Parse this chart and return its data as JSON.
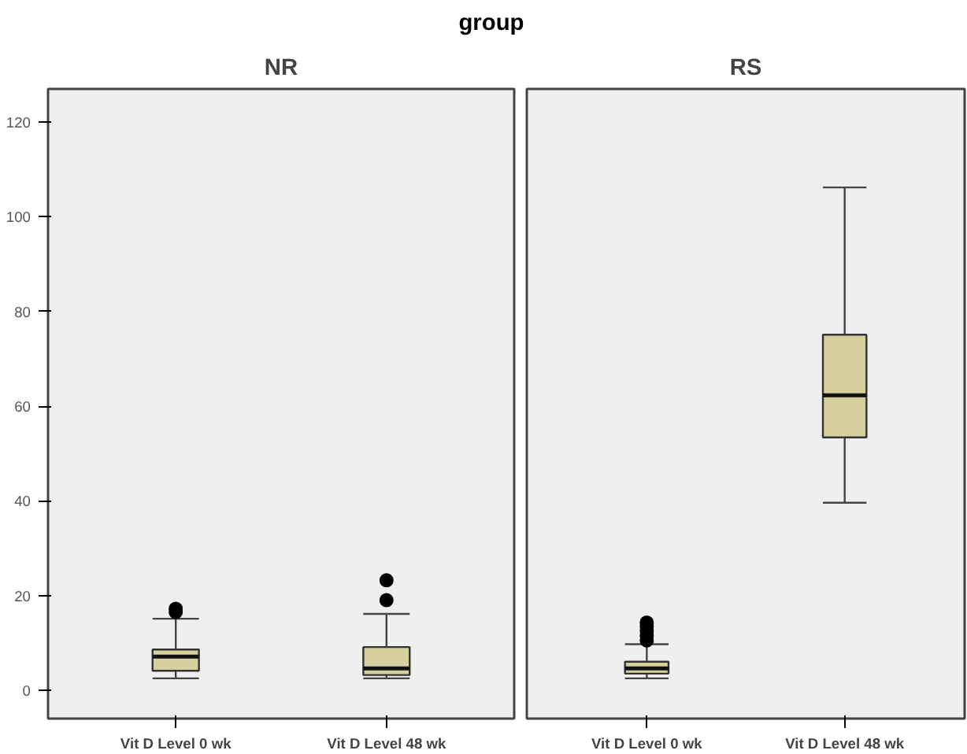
{
  "chart_data": [
    {
      "type": "box",
      "title": "NR",
      "annotations": [
        "group"
      ],
      "categories": [
        "Vit D Level 0 wk",
        "Vit D Level 48 wk"
      ],
      "color": "#d5d09d",
      "ylim": [
        -6,
        127
      ],
      "yticks": [
        0,
        20,
        40,
        60,
        80,
        100,
        120
      ],
      "grid": false,
      "boxes": [
        {
          "low": 2.5,
          "q1": 4.1,
          "median": 7.1,
          "q3": 8.6,
          "high": 15.1,
          "outliers": [
            16.5,
            17.2
          ]
        },
        {
          "low": 2.5,
          "q1": 3.2,
          "median": 4.6,
          "q3": 9.1,
          "high": 16.1,
          "outliers": [
            19,
            23.2
          ]
        }
      ]
    },
    {
      "type": "box",
      "title": "RS",
      "categories": [
        "Vit D Level 0 wk",
        "Vit D Level 48 wk"
      ],
      "color": "#d5d09d",
      "ylim": [
        -6,
        127
      ],
      "yticks": [
        0,
        20,
        40,
        60,
        80,
        100,
        120
      ],
      "grid": false,
      "tick_labels": "x",
      "boxes": [
        {
          "low": 2.5,
          "q1": 3.5,
          "median": 4.6,
          "q3": 6.0,
          "high": 9.7,
          "outliers": [
            10.5,
            11.5,
            12.5,
            13.5,
            14.3
          ]
        },
        {
          "low": 39.6,
          "q1": 53.4,
          "median": 62.3,
          "q3": 75.1,
          "high": 106.2
        }
      ]
    }
  ]
}
